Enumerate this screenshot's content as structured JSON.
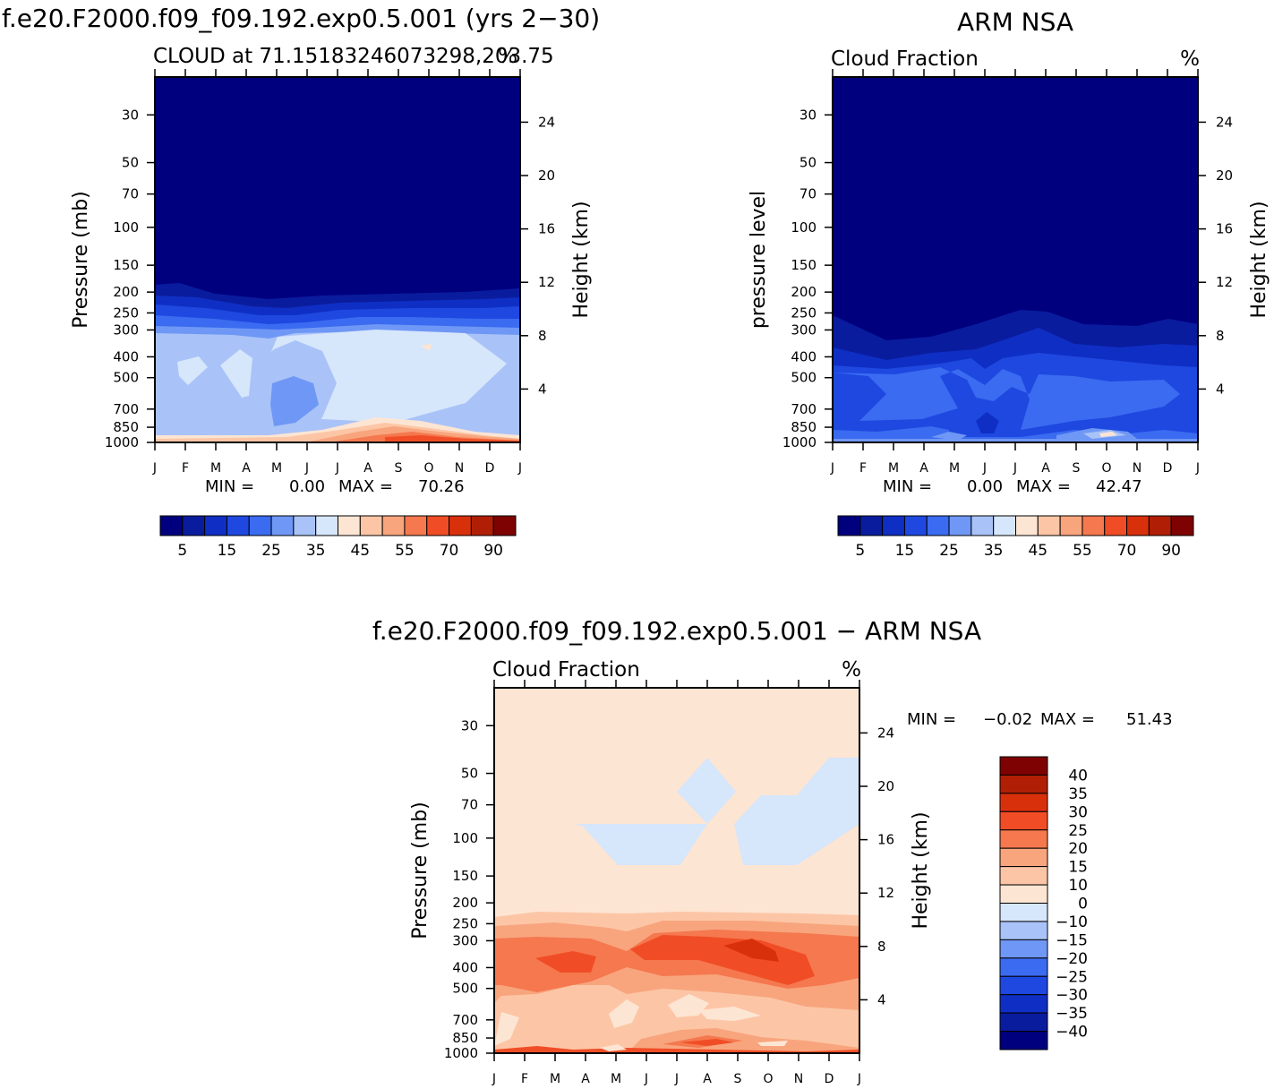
{
  "chart_data": [
    {
      "type": "contour",
      "title": "f.e20.F2000.f09_f09.192.exp0.5.001 (yrs 2−30)",
      "subtitle": "CLOUD at 71.15183246073298,203.75",
      "units": "%",
      "ylabel_left": "Pressure (mb)",
      "ylabel_right": "Height (km)",
      "pressure_ticks": [
        "30",
        "50",
        "70",
        "100",
        "150",
        "200",
        "250",
        "300",
        "400",
        "500",
        "700",
        "850",
        "1000"
      ],
      "height_ticks": [
        "24",
        "20",
        "16",
        "12",
        "8",
        "4"
      ],
      "months": [
        "J",
        "F",
        "M",
        "A",
        "M",
        "J",
        "J",
        "A",
        "S",
        "O",
        "N",
        "D",
        "J"
      ],
      "stats": {
        "min_label": "MIN =",
        "min": "0.00",
        "max_label": "MAX =",
        "max": "70.26"
      },
      "levels_labeled": [
        "5",
        "15",
        "25",
        "35",
        "45",
        "55",
        "70",
        "90"
      ]
    },
    {
      "type": "contour",
      "title": "ARM NSA",
      "subtitle": "Cloud Fraction",
      "units": "%",
      "ylabel_left": "pressure level",
      "ylabel_right": "Height (km)",
      "pressure_ticks": [
        "30",
        "50",
        "70",
        "100",
        "150",
        "200",
        "250",
        "300",
        "400",
        "500",
        "700",
        "850",
        "1000"
      ],
      "height_ticks": [
        "24",
        "20",
        "16",
        "12",
        "8",
        "4"
      ],
      "months": [
        "J",
        "F",
        "M",
        "A",
        "M",
        "J",
        "J",
        "A",
        "S",
        "O",
        "N",
        "D",
        "J"
      ],
      "stats": {
        "min_label": "MIN =",
        "min": "0.00",
        "max_label": "MAX =",
        "max": "42.47"
      },
      "levels_labeled": [
        "5",
        "15",
        "25",
        "35",
        "45",
        "55",
        "70",
        "90"
      ]
    },
    {
      "type": "contour",
      "title": "f.e20.F2000.f09_f09.192.exp0.5.001 − ARM NSA",
      "subtitle": "Cloud Fraction",
      "units": "%",
      "ylabel_left": "Pressure (mb)",
      "ylabel_right": "Height (km)",
      "pressure_ticks": [
        "30",
        "50",
        "70",
        "100",
        "150",
        "200",
        "250",
        "300",
        "400",
        "500",
        "700",
        "850",
        "1000"
      ],
      "height_ticks": [
        "24",
        "20",
        "16",
        "12",
        "8",
        "4"
      ],
      "months": [
        "J",
        "F",
        "M",
        "A",
        "M",
        "J",
        "J",
        "A",
        "S",
        "O",
        "N",
        "D",
        "J"
      ],
      "stats": {
        "min_label": "MIN =",
        "min": "−0.02",
        "max_label": "MAX =",
        "max": "51.43"
      },
      "levels_labeled": [
        "40",
        "35",
        "30",
        "25",
        "20",
        "15",
        "10",
        "0",
        "−10",
        "−15",
        "−20",
        "−25",
        "−30",
        "−35",
        "−40"
      ]
    }
  ],
  "colors": {
    "seq": [
      "#00007f",
      "#0a1c9e",
      "#0f2fc4",
      "#1e48e0",
      "#3a6bf0",
      "#6f97f5",
      "#a9c3f8",
      "#d6e6fb",
      "#fde5d3",
      "#fcc6a6",
      "#f8a57e",
      "#f5784f",
      "#f04d26",
      "#d9300c",
      "#b01f05",
      "#7f0202"
    ],
    "diff": [
      "#00007f",
      "#0a1c9e",
      "#0f2fc4",
      "#1e48e0",
      "#3a6bf0",
      "#6f97f5",
      "#a9c3f8",
      "#d6e6fb",
      "#fde5d3",
      "#fcc6a6",
      "#f8a57e",
      "#f5784f",
      "#f04d26",
      "#d9300c",
      "#b01f05",
      "#7f0202"
    ]
  }
}
